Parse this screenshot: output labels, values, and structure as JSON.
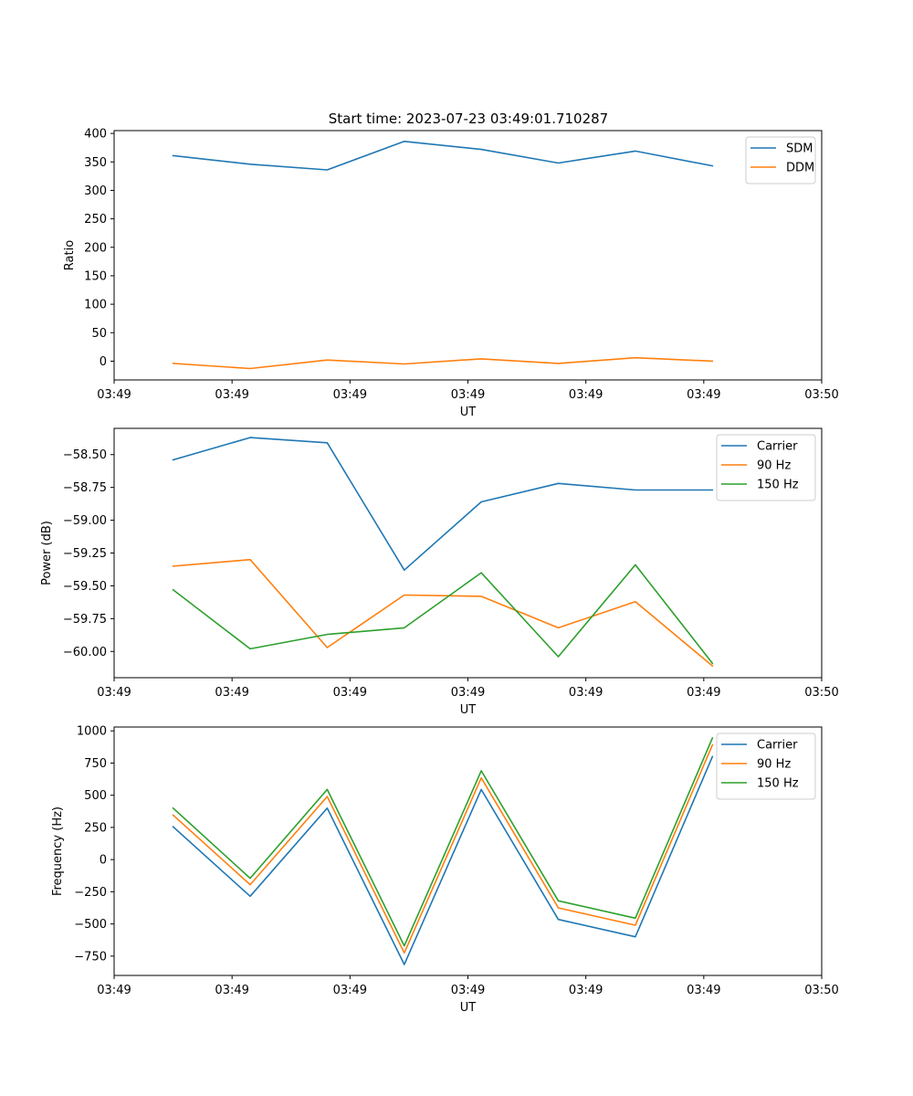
{
  "colors": {
    "c0": "#1f77b4",
    "c1": "#ff7f0e",
    "c2": "#2ca02c"
  },
  "chart_data": [
    {
      "type": "line",
      "title": "Start time: 2023-07-23 03:49:01.710287",
      "xlabel": "UT",
      "ylabel": "Ratio",
      "xlim": [
        0,
        9
      ],
      "ylim": [
        -33,
        405
      ],
      "x_ticks": [
        0,
        1.5,
        3,
        4.5,
        6,
        7.5,
        9
      ],
      "x_tick_labels": [
        "03:49",
        "03:49",
        "03:49",
        "03:49",
        "03:49",
        "03:49",
        "03:50"
      ],
      "y_ticks": [
        0,
        50,
        100,
        150,
        200,
        250,
        300,
        350,
        400
      ],
      "y_tick_labels": [
        "0",
        "50",
        "100",
        "150",
        "200",
        "250",
        "300",
        "350",
        "400"
      ],
      "legend_position": "top-right",
      "x": [
        0.75,
        1.73,
        2.71,
        3.69,
        4.67,
        5.65,
        6.63,
        7.61
      ],
      "series": [
        {
          "name": "SDM",
          "color": "#1f77b4",
          "values": [
            361,
            346,
            336,
            386,
            372,
            348,
            369,
            343
          ]
        },
        {
          "name": "DDM",
          "color": "#ff7f0e",
          "values": [
            -4,
            -13,
            2,
            -5,
            4,
            -4,
            6,
            0
          ]
        }
      ]
    },
    {
      "type": "line",
      "title": "",
      "xlabel": "UT",
      "ylabel": "Power (dB)",
      "xlim": [
        0,
        9
      ],
      "ylim": [
        -60.2,
        -58.3
      ],
      "x_ticks": [
        0,
        1.5,
        3,
        4.5,
        6,
        7.5,
        9
      ],
      "x_tick_labels": [
        "03:49",
        "03:49",
        "03:49",
        "03:49",
        "03:49",
        "03:49",
        "03:50"
      ],
      "y_ticks": [
        -60.0,
        -59.75,
        -59.5,
        -59.25,
        -59.0,
        -58.75,
        -58.5
      ],
      "y_tick_labels": [
        "−60.00",
        "−59.75",
        "−59.50",
        "−59.25",
        "−59.00",
        "−58.75",
        "−58.50"
      ],
      "legend_position": "top-right",
      "x": [
        0.75,
        1.73,
        2.71,
        3.69,
        4.67,
        5.65,
        6.63,
        7.61
      ],
      "series": [
        {
          "name": "Carrier",
          "color": "#1f77b4",
          "values": [
            -58.54,
            -58.37,
            -58.41,
            -59.38,
            -58.86,
            -58.72,
            -58.77,
            -58.77
          ]
        },
        {
          "name": "90 Hz",
          "color": "#ff7f0e",
          "values": [
            -59.35,
            -59.3,
            -59.97,
            -59.57,
            -59.58,
            -59.82,
            -59.62,
            -60.11
          ]
        },
        {
          "name": "150 Hz",
          "color": "#2ca02c",
          "values": [
            -59.53,
            -59.98,
            -59.87,
            -59.82,
            -59.4,
            -60.04,
            -59.34,
            -60.09
          ]
        }
      ]
    },
    {
      "type": "line",
      "title": "",
      "xlabel": "UT",
      "ylabel": "Frequency (Hz)",
      "xlim": [
        0,
        9
      ],
      "ylim": [
        -900,
        1030
      ],
      "x_ticks": [
        0,
        1.5,
        3,
        4.5,
        6,
        7.5,
        9
      ],
      "x_tick_labels": [
        "03:49",
        "03:49",
        "03:49",
        "03:49",
        "03:49",
        "03:49",
        "03:50"
      ],
      "y_ticks": [
        -750,
        -500,
        -250,
        0,
        250,
        500,
        750,
        1000
      ],
      "y_tick_labels": [
        "−750",
        "−500",
        "−250",
        "0",
        "250",
        "500",
        "750",
        "1000"
      ],
      "legend_position": "top-right",
      "x": [
        0.75,
        1.73,
        2.71,
        3.69,
        4.67,
        5.65,
        6.63,
        7.61
      ],
      "series": [
        {
          "name": "Carrier",
          "color": "#1f77b4",
          "values": [
            255,
            -285,
            400,
            -815,
            545,
            -465,
            -600,
            800
          ]
        },
        {
          "name": "90 Hz",
          "color": "#ff7f0e",
          "values": [
            345,
            -195,
            490,
            -725,
            635,
            -375,
            -510,
            890
          ]
        },
        {
          "name": "150 Hz",
          "color": "#2ca02c",
          "values": [
            400,
            -145,
            545,
            -670,
            690,
            -320,
            -455,
            945
          ]
        }
      ]
    }
  ]
}
